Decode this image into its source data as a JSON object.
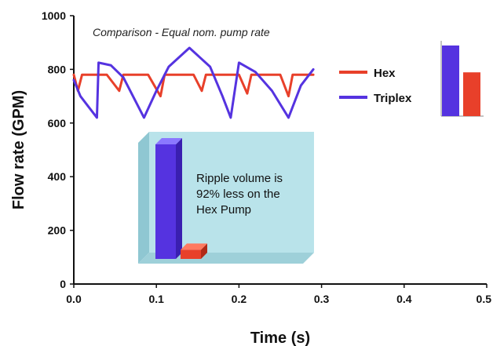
{
  "chart_data": {
    "type": "line",
    "subtitle": "Comparison - Equal nom. pump rate",
    "xlabel": "Time (s)",
    "ylabel": "Flow rate (GPM)",
    "xlim": [
      0,
      0.5
    ],
    "ylim": [
      0,
      1000
    ],
    "x_ticks": [
      "0.0",
      "0.1",
      "0.2",
      "0.3",
      "0.4",
      "0.5"
    ],
    "y_ticks": [
      "0",
      "200",
      "400",
      "600",
      "800",
      "1000"
    ],
    "grid": false,
    "legend_position": "right",
    "series": [
      {
        "name": "Hex",
        "color": "#e8402a",
        "x": [
          0.0,
          0.005,
          0.01,
          0.04,
          0.055,
          0.06,
          0.09,
          0.105,
          0.11,
          0.145,
          0.155,
          0.16,
          0.2,
          0.21,
          0.215,
          0.25,
          0.26,
          0.265,
          0.29
        ],
        "y": [
          780,
          720,
          780,
          780,
          720,
          780,
          780,
          700,
          780,
          780,
          720,
          780,
          780,
          710,
          780,
          780,
          700,
          780,
          780
        ]
      },
      {
        "name": "Triplex",
        "color": "#5533e0",
        "x": [
          0.0,
          0.008,
          0.018,
          0.028,
          0.03,
          0.045,
          0.06,
          0.085,
          0.1,
          0.115,
          0.14,
          0.165,
          0.18,
          0.19,
          0.2,
          0.22,
          0.24,
          0.26,
          0.275,
          0.29
        ],
        "y": [
          760,
          700,
          660,
          620,
          825,
          815,
          770,
          620,
          720,
          810,
          880,
          810,
          700,
          620,
          825,
          790,
          720,
          620,
          740,
          800
        ]
      }
    ],
    "annotation": {
      "lines": [
        "Ripple volume is",
        "92% less on the",
        "Hex Pump"
      ],
      "bars": [
        {
          "name": "Triplex",
          "value": 1.0,
          "color": "#5533e0"
        },
        {
          "name": "Hex",
          "value": 0.08,
          "color": "#e8402a"
        }
      ]
    },
    "corner_bars": [
      {
        "name": "Triplex",
        "value": 1.0,
        "color": "#5533e0"
      },
      {
        "name": "Hex",
        "value": 0.62,
        "color": "#e8402a"
      }
    ]
  }
}
